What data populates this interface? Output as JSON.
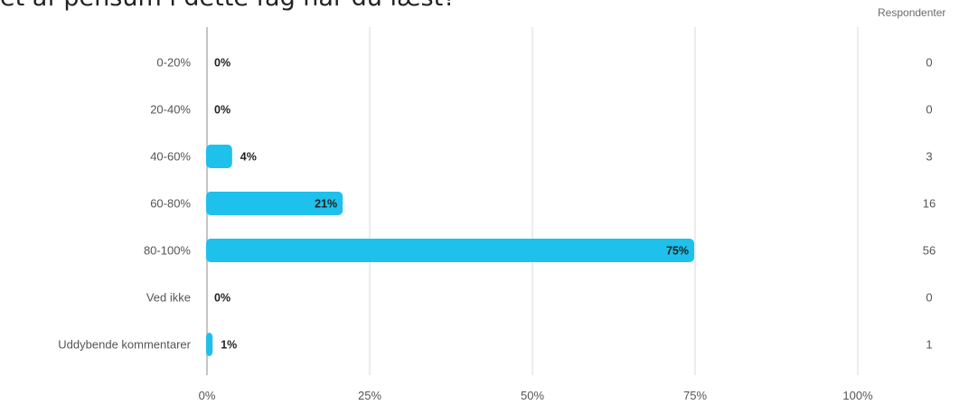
{
  "question": {
    "title": "et af pensum i dette fag har du læst?"
  },
  "respondents": {
    "header": "Respondenter"
  },
  "colors": {
    "bar": "#1ec0ec",
    "grid": "#d9d9d9",
    "axis": "#9e9e9e",
    "text": "#555555",
    "value_text": "#222222"
  },
  "chart_data": {
    "type": "bar",
    "orientation": "horizontal",
    "categories": [
      "0-20%",
      "20-40%",
      "40-60%",
      "60-80%",
      "80-100%",
      "Ved ikke",
      "Uddybende kommentarer"
    ],
    "values": [
      0,
      0,
      4,
      21,
      75,
      0,
      1
    ],
    "value_labels": [
      "0%",
      "0%",
      "4%",
      "21%",
      "75%",
      "0%",
      "1%"
    ],
    "respondents": [
      0,
      0,
      3,
      16,
      56,
      0,
      1
    ],
    "x_ticks": [
      "0%",
      "25%",
      "50%",
      "75%",
      "100%"
    ],
    "xlim": [
      0,
      100
    ],
    "grid": true
  }
}
